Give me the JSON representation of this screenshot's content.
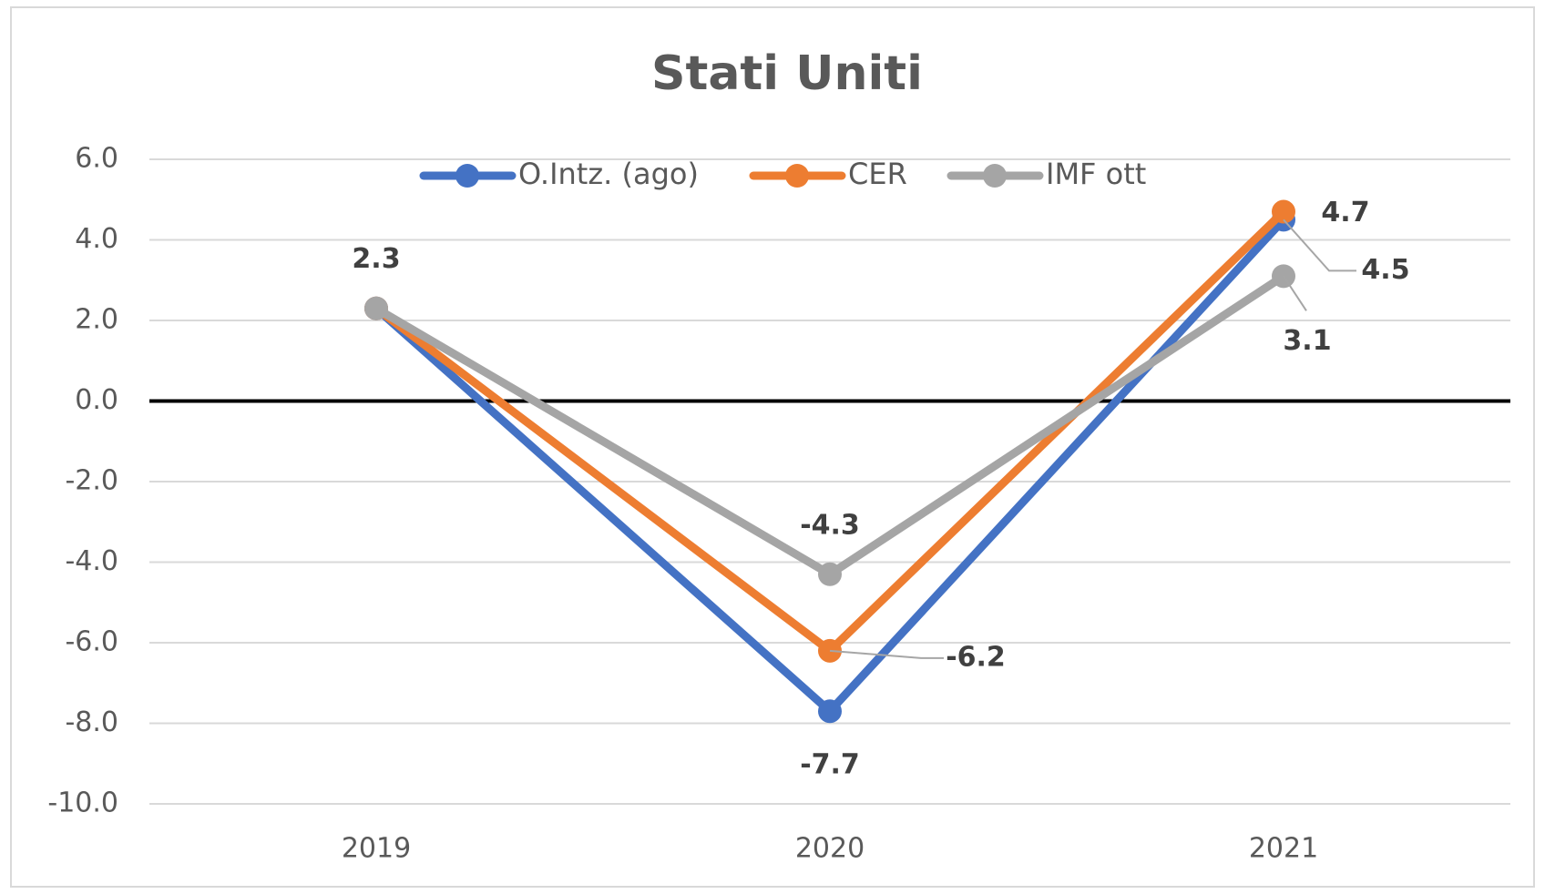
{
  "chart_data": {
    "type": "line",
    "title": "Stati Uniti",
    "categories": [
      "2019",
      "2020",
      "2021"
    ],
    "series": [
      {
        "name": "O.Intz. (ago)",
        "color": "#4472c4",
        "values": [
          2.3,
          -7.7,
          4.5
        ]
      },
      {
        "name": "CER",
        "color": "#ed7d31",
        "values": [
          2.3,
          -6.2,
          4.7
        ]
      },
      {
        "name": "IMF ott",
        "color": "#a5a5a5",
        "values": [
          2.3,
          -4.3,
          3.1
        ]
      }
    ],
    "ylim": [
      -10,
      6
    ],
    "yticks": [
      {
        "value": -10,
        "label": "-10.0"
      },
      {
        "value": -8,
        "label": "-8.0"
      },
      {
        "value": -6,
        "label": "-6.0"
      },
      {
        "value": -4,
        "label": "-4.0"
      },
      {
        "value": -2,
        "label": "-2.0"
      },
      {
        "value": 0,
        "label": "0.0"
      },
      {
        "value": 2,
        "label": "2.0"
      },
      {
        "value": 4,
        "label": "4.0"
      },
      {
        "value": 6,
        "label": "6.0"
      }
    ],
    "grid": true,
    "legend": "top"
  }
}
